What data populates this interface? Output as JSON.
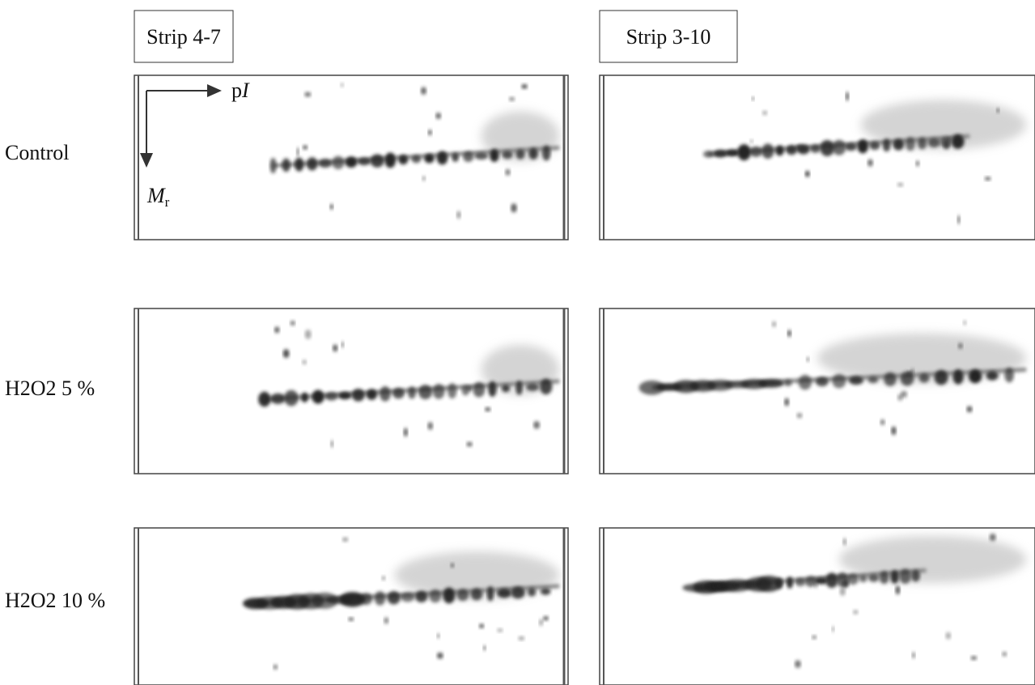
{
  "columns": [
    "Strip 4-7",
    "Strip 3-10"
  ],
  "rows": [
    "Control",
    "H2O2 5 %",
    "H2O2 10 %"
  ],
  "axes": {
    "pI": [
      "p",
      "I"
    ],
    "Mr": [
      "M",
      "r"
    ]
  }
}
